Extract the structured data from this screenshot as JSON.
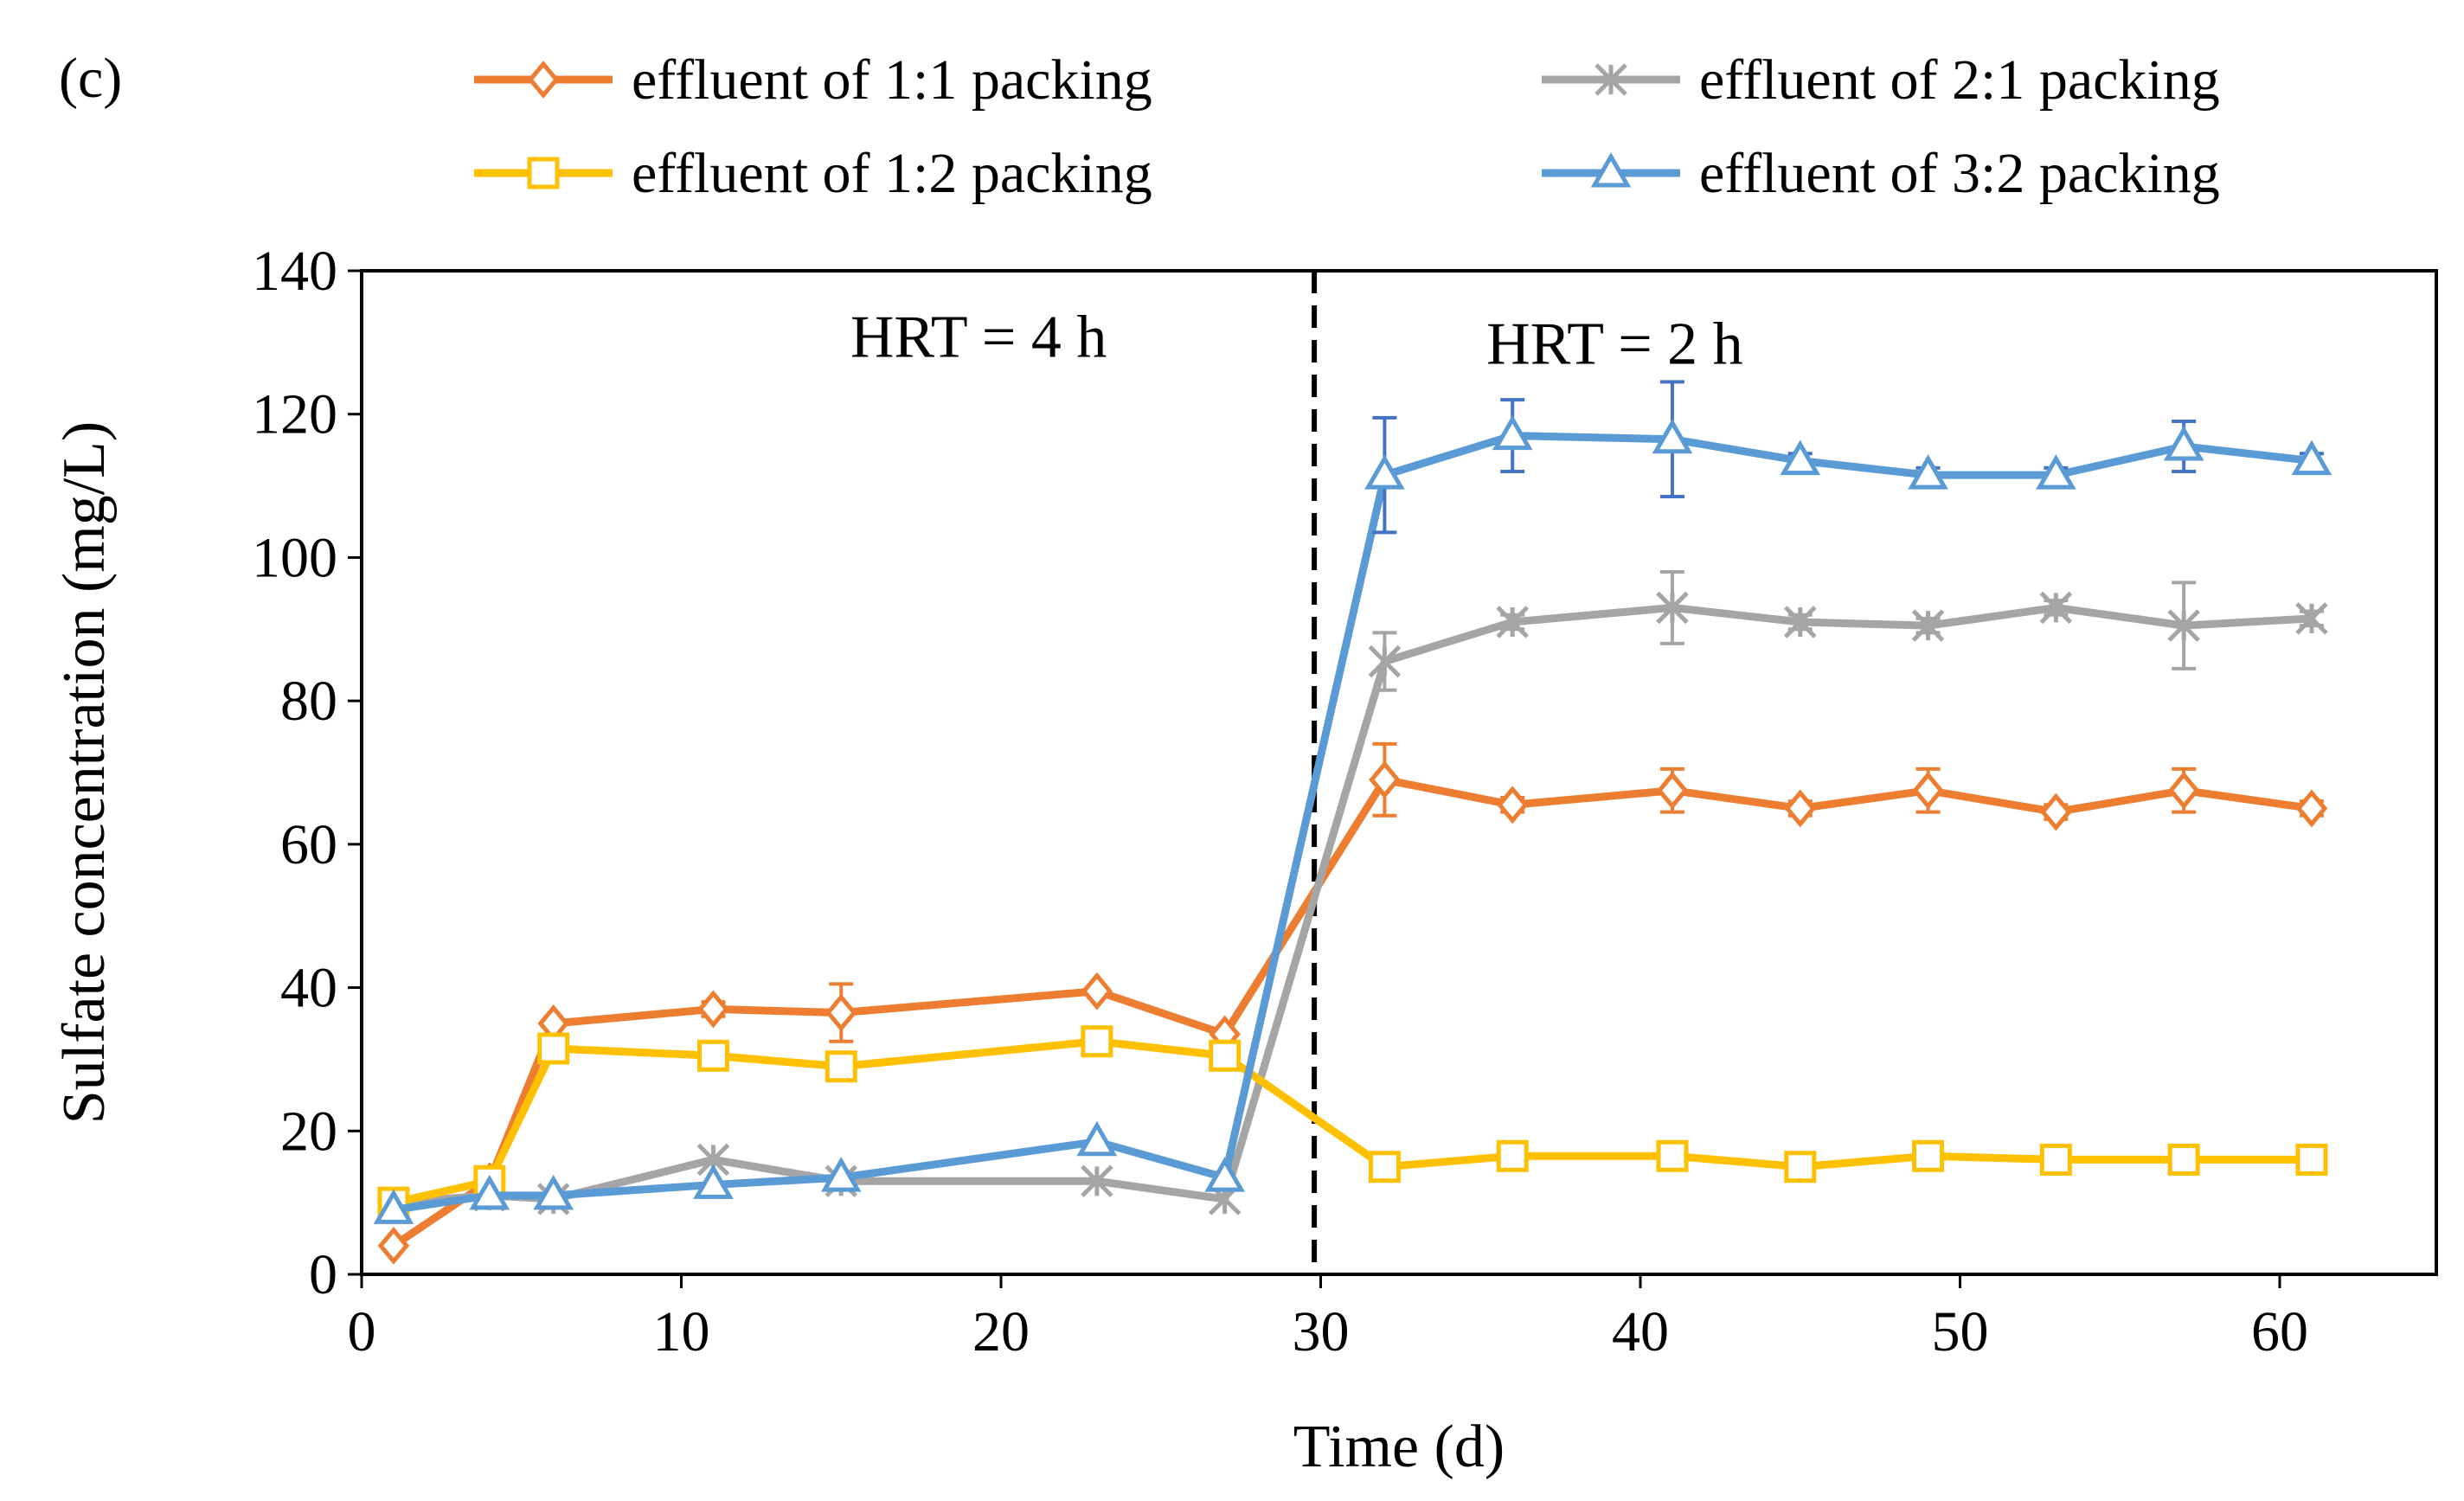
{
  "panel_label": "(c)",
  "chart_data": {
    "type": "line",
    "title": "",
    "xlabel": "Time (d)",
    "ylabel": "Sulfate concentration (mg/L)",
    "xlim": [
      0,
      65
    ],
    "ylim": [
      0,
      140
    ],
    "xticks": [
      0,
      10,
      20,
      30,
      40,
      50,
      60
    ],
    "yticks": [
      0,
      20,
      40,
      60,
      80,
      100,
      120,
      140
    ],
    "grid": false,
    "legend_position": "top",
    "divider": {
      "x": 29.8,
      "style": "dashed"
    },
    "annotations": [
      {
        "text": "HRT = 4 h",
        "x": 19.3,
        "y": 128
      },
      {
        "text": "HRT = 2 h",
        "x": 39.2,
        "y": 127
      }
    ],
    "series": [
      {
        "name": "effluent of 1:1 packing",
        "color": "#ED7D31",
        "marker": "diamond",
        "x": [
          1,
          4,
          6,
          11,
          15,
          23,
          27,
          32,
          36,
          41,
          45,
          49,
          53,
          57,
          61
        ],
        "y": [
          4,
          13,
          35,
          37,
          36.5,
          39.5,
          33.5,
          69,
          65.5,
          67.5,
          65,
          67.5,
          64.5,
          67.5,
          65
        ],
        "err": [
          0,
          0,
          0,
          1,
          4,
          0,
          0,
          5,
          1,
          3,
          1,
          3,
          1,
          3,
          1
        ]
      },
      {
        "name": "effluent of 2:1 packing",
        "color": "#A5A5A5",
        "marker": "asterisk",
        "x": [
          1,
          4,
          6,
          11,
          15,
          23,
          27,
          32,
          36,
          41,
          45,
          49,
          53,
          57,
          61
        ],
        "y": [
          10,
          11,
          10.5,
          16,
          13,
          13,
          10.5,
          85.5,
          91,
          93,
          91,
          90.5,
          93,
          90.5,
          91.5
        ],
        "err": [
          0,
          0,
          0,
          0,
          0,
          0,
          0,
          4,
          1,
          5,
          1,
          1,
          1,
          6,
          1
        ]
      },
      {
        "name": "effluent of 1:2 packing",
        "color": "#FFC000",
        "marker": "square",
        "x": [
          1,
          4,
          6,
          11,
          15,
          23,
          27,
          32,
          36,
          41,
          45,
          49,
          53,
          57,
          61
        ],
        "y": [
          10,
          13,
          31.5,
          30.5,
          29,
          32.5,
          30.5,
          15,
          16.5,
          16.5,
          15,
          16.5,
          16,
          16,
          16
        ],
        "err": [
          0,
          0,
          0,
          1,
          1,
          1,
          0,
          1,
          1,
          1,
          1,
          1,
          1,
          1,
          1
        ]
      },
      {
        "name": "effluent of 3:2 packing",
        "color": "#5B9BD5",
        "marker": "triangle",
        "x": [
          1,
          4,
          6,
          11,
          15,
          23,
          27,
          32,
          36,
          41,
          45,
          49,
          53,
          57,
          61
        ],
        "y": [
          9,
          11,
          11,
          12.5,
          13.5,
          18.5,
          13.5,
          111.5,
          117,
          116.5,
          113.5,
          111.5,
          111.5,
          115.5,
          113.5
        ],
        "err": [
          0,
          0,
          0,
          0,
          0,
          0,
          0,
          8,
          5,
          8,
          1,
          1,
          1,
          3.5,
          1
        ],
        "errColor": "#4472C4"
      }
    ]
  }
}
